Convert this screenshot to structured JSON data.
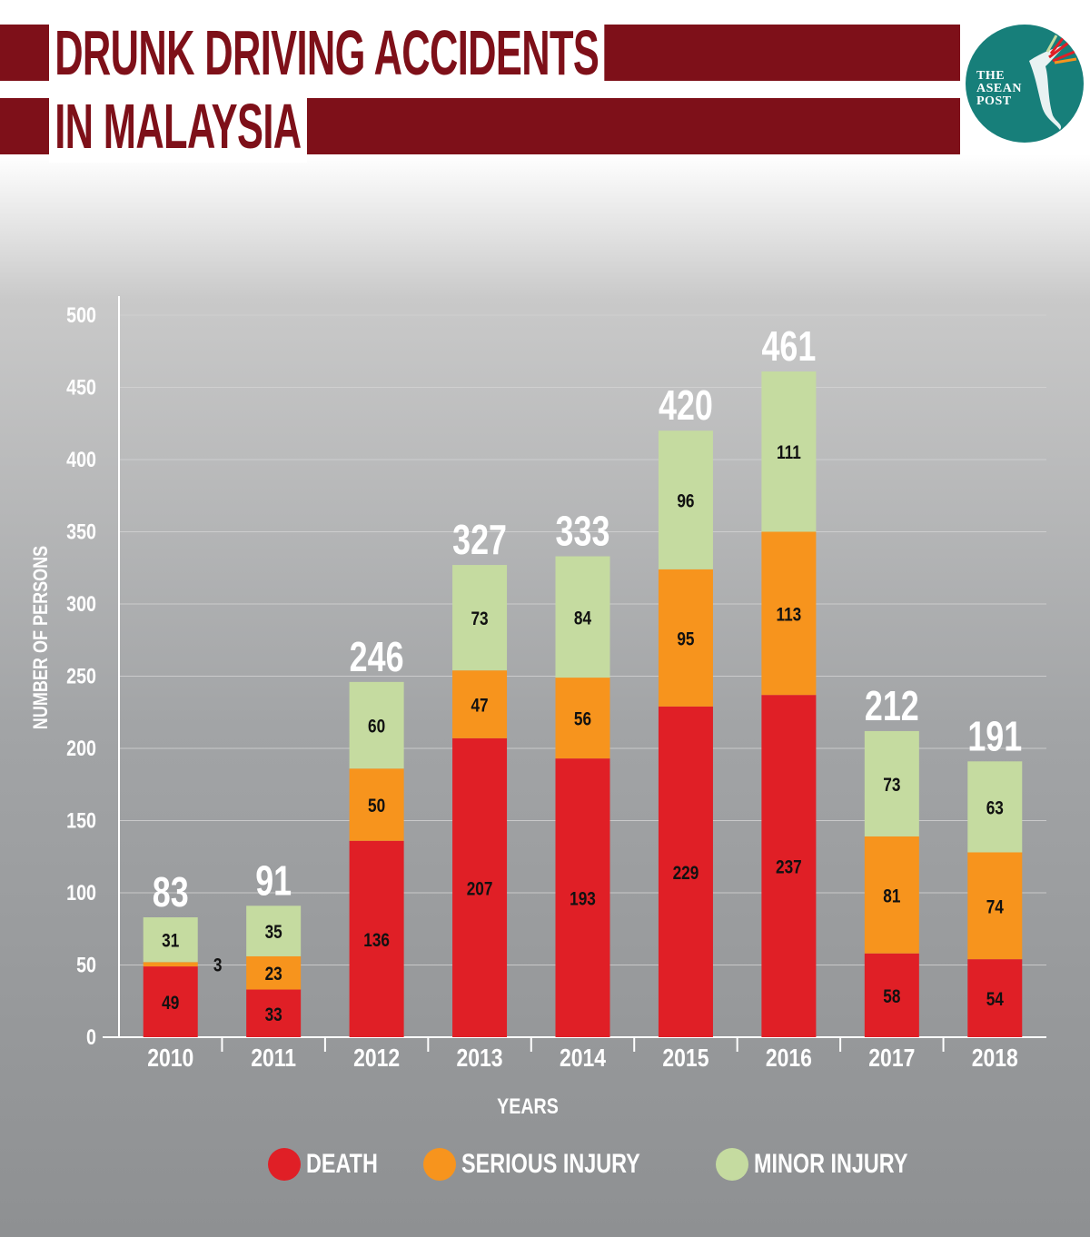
{
  "header": {
    "title_line1": "DRUNK DRIVING ACCIDENTS",
    "title_line2": "IN MALAYSIA",
    "logo_lines": [
      "THE",
      "ASEAN",
      "POST"
    ]
  },
  "colors": {
    "title_band": "#7e1019",
    "death": "#e01f26",
    "serious_injury": "#f7941d",
    "minor_injury": "#c5dba0",
    "logo_bg": "#177f7a"
  },
  "chart_data": {
    "type": "bar",
    "stacked": true,
    "title": "DRUNK DRIVING ACCIDENTS IN MALAYSIA",
    "xlabel": "YEARS",
    "ylabel": "NUMBER OF PERSONS",
    "ylim": [
      0,
      500
    ],
    "yticks": [
      0,
      50,
      100,
      150,
      200,
      250,
      300,
      350,
      400,
      450,
      500
    ],
    "grid": true,
    "legend_position": "bottom",
    "categories": [
      "2010",
      "2011",
      "2012",
      "2013",
      "2014",
      "2015",
      "2016",
      "2017",
      "2018"
    ],
    "series": [
      {
        "name": "DEATH",
        "values": [
          49,
          33,
          136,
          207,
          193,
          229,
          237,
          58,
          54
        ]
      },
      {
        "name": "SERIOUS INJURY",
        "values": [
          3,
          23,
          50,
          47,
          56,
          95,
          113,
          81,
          74
        ]
      },
      {
        "name": "MINOR INJURY",
        "values": [
          31,
          35,
          60,
          73,
          84,
          96,
          111,
          73,
          63
        ]
      }
    ],
    "totals": [
      83,
      91,
      246,
      327,
      333,
      420,
      461,
      212,
      191
    ]
  }
}
